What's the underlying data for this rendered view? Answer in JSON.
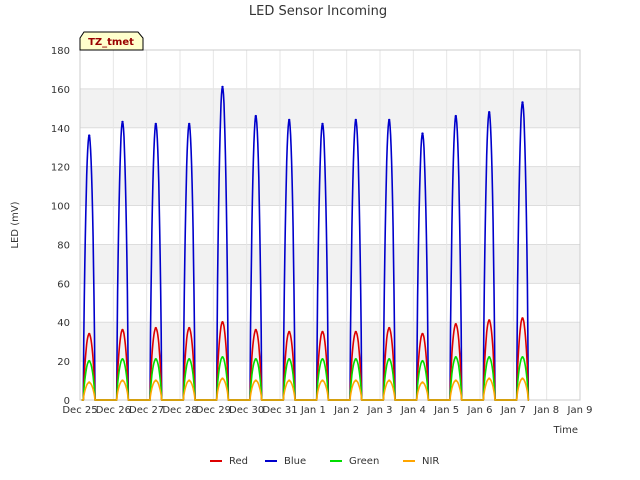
{
  "chart_data": {
    "type": "line",
    "title": "LED Sensor Incoming",
    "xlabel": "Time",
    "ylabel": "LED (mV)",
    "ylim": [
      0,
      180
    ],
    "yticks": [
      0,
      20,
      40,
      60,
      80,
      100,
      120,
      140,
      160,
      180
    ],
    "xlim": [
      0,
      15
    ],
    "xtick_labels": [
      "Dec 25",
      "Dec 26",
      "Dec 27",
      "Dec 28",
      "Dec 29",
      "Dec 30",
      "Dec 31",
      "Jan 1",
      "Jan 2",
      "Jan 3",
      "Jan 4",
      "Jan 5",
      "Jan 6",
      "Jan 7",
      "Jan 8",
      "Jan 9"
    ],
    "grid": true,
    "legend_position": "bottom",
    "annotation": "TZ_tmet",
    "day_index": [
      1,
      2,
      3,
      4,
      5,
      6,
      7,
      8,
      9,
      10,
      11,
      12,
      13,
      14
    ],
    "series": [
      {
        "name": "Red",
        "color": "#dd0000",
        "peaks": [
          34,
          36,
          37,
          37,
          40,
          36,
          35,
          35,
          35,
          37,
          34,
          39,
          41,
          42
        ]
      },
      {
        "name": "Blue",
        "color": "#0000cc",
        "peaks": [
          136,
          143,
          142,
          142,
          161,
          146,
          144,
          142,
          144,
          144,
          137,
          146,
          148,
          153
        ]
      },
      {
        "name": "Green",
        "color": "#00dd00",
        "peaks": [
          20,
          21,
          21,
          21,
          22,
          21,
          21,
          21,
          21,
          21,
          20,
          22,
          22,
          22
        ]
      },
      {
        "name": "NIR",
        "color": "#ffa500",
        "peaks": [
          9,
          10,
          10,
          10,
          11,
          10,
          10,
          10,
          10,
          10,
          9,
          10,
          11,
          11
        ]
      }
    ]
  }
}
